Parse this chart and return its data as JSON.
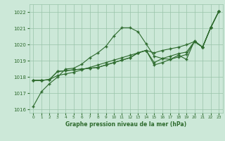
{
  "x": [
    0,
    1,
    2,
    3,
    4,
    5,
    6,
    7,
    8,
    9,
    10,
    11,
    12,
    13,
    14,
    15,
    16,
    17,
    18,
    19,
    20,
    21,
    22,
    23
  ],
  "line1": [
    1016.2,
    1017.1,
    1017.6,
    1018.0,
    1018.5,
    1018.55,
    1018.8,
    1019.2,
    1019.5,
    1019.9,
    1020.55,
    1021.05,
    1021.05,
    1020.8,
    1020.05,
    1019.3,
    1019.15,
    1019.1,
    1019.35,
    1019.1,
    1020.25,
    1019.85,
    1021.05,
    1022.05
  ],
  "line2": [
    1017.8,
    1017.8,
    1017.85,
    1018.1,
    1018.2,
    1018.3,
    1018.45,
    1018.6,
    1018.75,
    1018.9,
    1019.05,
    1019.2,
    1019.35,
    1019.5,
    1019.65,
    1019.5,
    1019.65,
    1019.75,
    1019.85,
    1020.0,
    1020.2,
    1019.85,
    1021.05,
    1022.05
  ],
  "line3": [
    1017.8,
    1017.8,
    1017.85,
    1018.35,
    1018.4,
    1018.45,
    1018.5,
    1018.55,
    1018.6,
    1018.75,
    1018.9,
    1019.05,
    1019.2,
    1019.5,
    1019.65,
    1018.9,
    1019.15,
    1019.3,
    1019.45,
    1019.55,
    1020.2,
    1019.85,
    1021.05,
    1022.05
  ],
  "line4": [
    1017.8,
    1017.8,
    1017.85,
    1018.35,
    1018.4,
    1018.45,
    1018.5,
    1018.55,
    1018.6,
    1018.75,
    1018.9,
    1019.05,
    1019.2,
    1019.5,
    1019.65,
    1018.75,
    1018.9,
    1019.1,
    1019.25,
    1019.4,
    1020.2,
    1019.85,
    1021.05,
    1022.05
  ],
  "line_color": "#2d6a2d",
  "bg_color": "#cce8d8",
  "grid_color": "#99c4aa",
  "title": "Graphe pression niveau de la mer (hPa)",
  "ylim_min": 1015.8,
  "ylim_max": 1022.5,
  "yticks": [
    1016,
    1017,
    1018,
    1019,
    1020,
    1021,
    1022
  ],
  "xticks": [
    0,
    1,
    2,
    3,
    4,
    5,
    6,
    7,
    8,
    9,
    10,
    11,
    12,
    13,
    14,
    15,
    16,
    17,
    18,
    19,
    20,
    21,
    22,
    23
  ]
}
